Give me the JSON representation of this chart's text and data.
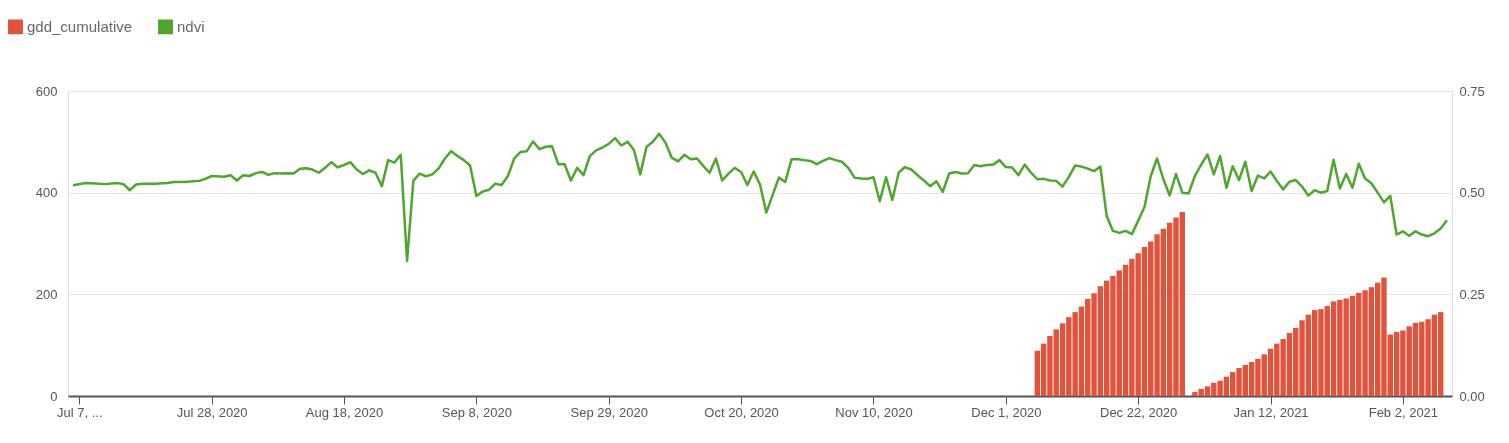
{
  "chart_data": {
    "type": "bar",
    "legend": "top left",
    "grid": "y",
    "xlim": [
      "2020-07-06",
      "2021-02-09"
    ],
    "xticks": [
      {
        "value": "2020-07-07",
        "label": "Jul 7, ..."
      },
      {
        "value": "2020-07-28",
        "label": "Jul 28, 2020"
      },
      {
        "value": "2020-08-18",
        "label": "Aug 18, 2020"
      },
      {
        "value": "2020-09-08",
        "label": "Sep 8, 2020"
      },
      {
        "value": "2020-09-29",
        "label": "Sep 29, 2020"
      },
      {
        "value": "2020-10-20",
        "label": "Oct 20, 2020"
      },
      {
        "value": "2020-11-10",
        "label": "Nov 10, 2020"
      },
      {
        "value": "2020-12-01",
        "label": "Dec 1, 2020"
      },
      {
        "value": "2020-12-22",
        "label": "Dec 22, 2020"
      },
      {
        "value": "2021-01-12",
        "label": "Jan 12, 2021"
      },
      {
        "value": "2021-02-02",
        "label": "Feb 2, 2021"
      }
    ],
    "ylim": [
      0,
      600
    ],
    "yticks": [
      0,
      200,
      400,
      600
    ],
    "y2lim": [
      0,
      0.75
    ],
    "y2ticks": [
      {
        "value": 0,
        "label": "0.00"
      },
      {
        "value": 0.25,
        "label": "0.25"
      },
      {
        "value": 0.5,
        "label": "0.50"
      },
      {
        "value": 0.75,
        "label": "0.75"
      }
    ],
    "series": [
      {
        "name": "gdd_cumulative",
        "color": "#e0533d",
        "x": [
          "2020-12-06",
          "2020-12-07",
          "2020-12-08",
          "2020-12-09",
          "2020-12-10",
          "2020-12-11",
          "2020-12-12",
          "2020-12-13",
          "2020-12-14",
          "2020-12-15",
          "2020-12-16",
          "2020-12-17",
          "2020-12-18",
          "2020-12-19",
          "2020-12-20",
          "2020-12-21",
          "2020-12-22",
          "2020-12-23",
          "2020-12-24",
          "2020-12-25",
          "2020-12-26",
          "2020-12-27",
          "2020-12-28",
          "2020-12-29",
          "2020-12-31",
          "2021-01-01",
          "2021-01-02",
          "2021-01-03",
          "2021-01-04",
          "2021-01-05",
          "2021-01-06",
          "2021-01-07",
          "2021-01-08",
          "2021-01-09",
          "2021-01-10",
          "2021-01-11",
          "2021-01-12",
          "2021-01-13",
          "2021-01-14",
          "2021-01-15",
          "2021-01-16",
          "2021-01-17",
          "2021-01-18",
          "2021-01-19",
          "2021-01-20",
          "2021-01-21",
          "2021-01-22",
          "2021-01-23",
          "2021-01-24",
          "2021-01-25",
          "2021-01-26",
          "2021-01-27",
          "2021-01-28",
          "2021-01-29",
          "2021-01-30",
          "2021-01-31",
          "2021-02-01",
          "2021-02-02",
          "2021-02-03",
          "2021-02-04",
          "2021-02-05",
          "2021-02-06",
          "2021-02-07",
          "2021-02-08"
        ],
        "values": [
          89,
          103,
          118,
          131,
          143,
          155,
          165,
          176,
          191,
          202,
          216,
          227,
          236,
          247,
          258,
          270,
          281,
          293,
          304,
          318,
          329,
          341,
          351,
          362,
          8,
          14,
          19,
          26,
          30,
          38,
          47,
          55,
          61,
          67,
          73,
          82,
          93,
          103,
          112,
          124,
          134,
          149,
          160,
          169,
          171,
          177,
          186,
          189,
          192,
          197,
          203,
          208,
          214,
          223,
          233,
          121,
          126,
          129,
          137,
          144,
          146,
          151,
          160,
          165
        ]
      },
      {
        "name": "ndvi",
        "type": "line",
        "axis": "y2",
        "color": "#4fa62f",
        "x": [
          "2020-07-06",
          "2020-07-08",
          "2020-07-09",
          "2020-07-11",
          "2020-07-13",
          "2020-07-14",
          "2020-07-15",
          "2020-07-16",
          "2020-07-17",
          "2020-07-19",
          "2020-07-21",
          "2020-07-22",
          "2020-07-24",
          "2020-07-26",
          "2020-07-27",
          "2020-07-28",
          "2020-07-30",
          "2020-07-31",
          "2020-08-01",
          "2020-08-02",
          "2020-08-03",
          "2020-08-04",
          "2020-08-05",
          "2020-08-06",
          "2020-08-07",
          "2020-08-08",
          "2020-08-09",
          "2020-08-10",
          "2020-08-11",
          "2020-08-12",
          "2020-08-13",
          "2020-08-14",
          "2020-08-15",
          "2020-08-16",
          "2020-08-17",
          "2020-08-18",
          "2020-08-19",
          "2020-08-20",
          "2020-08-21",
          "2020-08-22",
          "2020-08-23",
          "2020-08-24",
          "2020-08-25",
          "2020-08-26",
          "2020-08-27",
          "2020-08-28",
          "2020-08-29",
          "2020-08-30",
          "2020-08-31",
          "2020-09-01",
          "2020-09-02",
          "2020-09-03",
          "2020-09-04",
          "2020-09-05",
          "2020-09-06",
          "2020-09-07",
          "2020-09-08",
          "2020-09-09",
          "2020-09-10",
          "2020-09-11",
          "2020-09-12",
          "2020-09-13",
          "2020-09-14",
          "2020-09-15",
          "2020-09-16",
          "2020-09-17",
          "2020-09-18",
          "2020-09-19",
          "2020-09-20",
          "2020-09-21",
          "2020-09-22",
          "2020-09-23",
          "2020-09-24",
          "2020-09-25",
          "2020-09-26",
          "2020-09-27",
          "2020-09-28",
          "2020-09-29",
          "2020-09-30",
          "2020-10-01",
          "2020-10-02",
          "2020-10-03",
          "2020-10-04",
          "2020-10-05",
          "2020-10-06",
          "2020-10-07",
          "2020-10-08",
          "2020-10-09",
          "2020-10-10",
          "2020-10-11",
          "2020-10-12",
          "2020-10-13",
          "2020-10-14",
          "2020-10-15",
          "2020-10-16",
          "2020-10-17",
          "2020-10-18",
          "2020-10-19",
          "2020-10-20",
          "2020-10-21",
          "2020-10-22",
          "2020-10-23",
          "2020-10-24",
          "2020-10-25",
          "2020-10-26",
          "2020-10-27",
          "2020-10-28",
          "2020-10-29",
          "2020-10-30",
          "2020-10-31",
          "2020-11-01",
          "2020-11-02",
          "2020-11-03",
          "2020-11-04",
          "2020-11-05",
          "2020-11-06",
          "2020-11-07",
          "2020-11-08",
          "2020-11-09",
          "2020-11-10",
          "2020-11-11",
          "2020-11-12",
          "2020-11-13",
          "2020-11-14",
          "2020-11-15",
          "2020-11-16",
          "2020-11-17",
          "2020-11-18",
          "2020-11-19",
          "2020-11-20",
          "2020-11-21",
          "2020-11-22",
          "2020-11-23",
          "2020-11-24",
          "2020-11-25",
          "2020-11-26",
          "2020-11-27",
          "2020-11-28",
          "2020-11-29",
          "2020-11-30",
          "2020-12-01",
          "2020-12-02",
          "2020-12-03",
          "2020-12-04",
          "2020-12-05",
          "2020-12-06",
          "2020-12-07",
          "2020-12-08",
          "2020-12-09",
          "2020-12-10",
          "2020-12-11",
          "2020-12-12",
          "2020-12-13",
          "2020-12-14",
          "2020-12-15",
          "2020-12-16",
          "2020-12-17",
          "2020-12-18",
          "2020-12-19",
          "2020-12-20",
          "2020-12-21",
          "2020-12-22",
          "2020-12-23",
          "2020-12-24",
          "2020-12-25",
          "2020-12-26",
          "2020-12-27",
          "2020-12-28",
          "2020-12-29",
          "2020-12-30",
          "2020-12-31",
          "2021-01-01",
          "2021-01-02",
          "2021-01-03",
          "2021-01-04",
          "2021-01-05",
          "2021-01-06",
          "2021-01-07",
          "2021-01-08",
          "2021-01-09",
          "2021-01-10",
          "2021-01-11",
          "2021-01-12",
          "2021-01-13",
          "2021-01-14",
          "2021-01-15",
          "2021-01-16",
          "2021-01-17",
          "2021-01-18",
          "2021-01-19",
          "2021-01-20",
          "2021-01-21",
          "2021-01-22",
          "2021-01-23",
          "2021-01-24",
          "2021-01-25",
          "2021-01-26",
          "2021-01-27",
          "2021-01-28",
          "2021-01-29",
          "2021-01-30",
          "2021-01-31",
          "2021-02-01",
          "2021-02-02",
          "2021-02-03",
          "2021-02-04",
          "2021-02-05",
          "2021-02-06",
          "2021-02-07",
          "2021-02-08",
          "2021-02-09"
        ],
        "values": [
          0.518,
          0.524,
          0.523,
          0.521,
          0.524,
          0.521,
          0.506,
          0.52,
          0.522,
          0.522,
          0.524,
          0.526,
          0.527,
          0.529,
          0.534,
          0.541,
          0.539,
          0.543,
          0.53,
          0.543,
          0.541,
          0.548,
          0.551,
          0.544,
          0.548,
          0.547,
          0.548,
          0.547,
          0.559,
          0.56,
          0.557,
          0.549,
          0.561,
          0.575,
          0.562,
          0.568,
          0.575,
          0.557,
          0.546,
          0.555,
          0.549,
          0.516,
          0.58,
          0.574,
          0.593,
          0.332,
          0.529,
          0.547,
          0.54,
          0.545,
          0.559,
          0.584,
          0.602,
          0.59,
          0.58,
          0.567,
          0.492,
          0.503,
          0.507,
          0.522,
          0.519,
          0.541,
          0.584,
          0.6,
          0.602,
          0.626,
          0.607,
          0.613,
          0.614,
          0.57,
          0.57,
          0.53,
          0.561,
          0.543,
          0.59,
          0.604,
          0.611,
          0.62,
          0.634,
          0.616,
          0.625,
          0.605,
          0.545,
          0.613,
          0.625,
          0.645,
          0.623,
          0.586,
          0.577,
          0.593,
          0.582,
          0.584,
          0.566,
          0.549,
          0.584,
          0.53,
          0.547,
          0.561,
          0.551,
          0.519,
          0.552,
          0.52,
          0.451,
          0.494,
          0.537,
          0.526,
          0.582,
          0.582,
          0.58,
          0.578,
          0.57,
          0.578,
          0.585,
          0.58,
          0.576,
          0.561,
          0.537,
          0.535,
          0.534,
          0.538,
          0.479,
          0.538,
          0.482,
          0.549,
          0.563,
          0.557,
          0.543,
          0.53,
          0.516,
          0.528,
          0.502,
          0.547,
          0.551,
          0.547,
          0.548,
          0.568,
          0.565,
          0.568,
          0.569,
          0.58,
          0.563,
          0.562,
          0.543,
          0.569,
          0.549,
          0.533,
          0.534,
          0.53,
          0.529,
          0.515,
          0.539,
          0.567,
          0.564,
          0.559,
          0.553,
          0.564,
          0.443,
          0.406,
          0.401,
          0.406,
          0.398,
          0.431,
          0.465,
          0.541,
          0.584,
          0.533,
          0.493,
          0.546,
          0.5,
          0.498,
          0.541,
          0.569,
          0.594,
          0.545,
          0.59,
          0.512,
          0.565,
          0.531,
          0.576,
          0.504,
          0.542,
          0.535,
          0.552,
          0.529,
          0.508,
          0.527,
          0.531,
          0.515,
          0.493,
          0.506,
          0.5,
          0.504,
          0.581,
          0.51,
          0.546,
          0.512,
          0.571,
          0.535,
          0.523,
          0.5,
          0.476,
          0.492,
          0.397,
          0.405,
          0.394,
          0.405,
          0.397,
          0.393,
          0.4,
          0.412,
          0.432
        ]
      }
    ]
  }
}
